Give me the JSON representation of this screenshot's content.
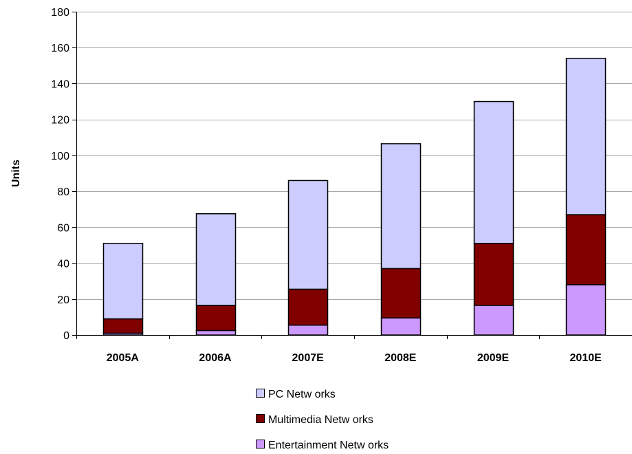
{
  "chart_data": {
    "type": "bar",
    "stacked": true,
    "categories": [
      "2005A",
      "2006A",
      "2007E",
      "2008E",
      "2009E",
      "2010E"
    ],
    "series": [
      {
        "name": "Entertainment Netw orks",
        "color": "#cc99ff",
        "values": [
          1,
          2.5,
          5.5,
          9.5,
          16.5,
          28
        ]
      },
      {
        "name": "Multimedia Netw orks",
        "color": "#800000",
        "values": [
          8,
          14,
          20,
          27.5,
          34.5,
          39
        ]
      },
      {
        "name": "PC Netw orks",
        "color": "#ccccff",
        "values": [
          42,
          51,
          60.5,
          69.5,
          79,
          87
        ]
      }
    ],
    "legend_order": [
      "PC Netw orks",
      "Multimedia Netw orks",
      "Entertainment Netw orks"
    ],
    "ylabel": "Units",
    "xlabel": "",
    "ylim": [
      0,
      180
    ],
    "yticks": [
      0,
      20,
      40,
      60,
      80,
      100,
      120,
      140,
      160,
      180
    ],
    "grid": true,
    "legend_position": "bottom"
  }
}
